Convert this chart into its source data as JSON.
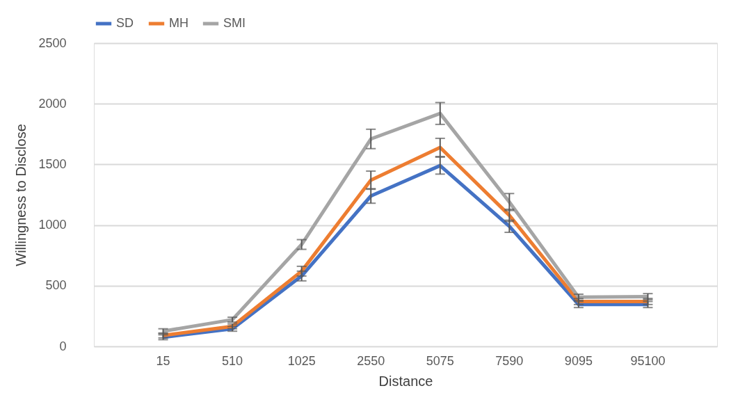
{
  "chart_data": {
    "type": "line",
    "xlabel": "Distance",
    "ylabel": "Willingness to Disclose",
    "categories": [
      "15",
      "510",
      "1025",
      "2550",
      "5075",
      "7590",
      "9095",
      "95100"
    ],
    "series": [
      {
        "name": "SD",
        "color": "#4472c4",
        "values": [
          75,
          145,
          580,
          1240,
          1490,
          990,
          345,
          345
        ],
        "errors": [
          20,
          20,
          40,
          60,
          70,
          50,
          25,
          25
        ]
      },
      {
        "name": "MH",
        "color": "#ed7d31",
        "values": [
          90,
          165,
          620,
          1370,
          1640,
          1080,
          370,
          370
        ],
        "errors": [
          20,
          20,
          40,
          75,
          75,
          50,
          25,
          25
        ]
      },
      {
        "name": "SMI",
        "color": "#a5a5a5",
        "values": [
          125,
          220,
          840,
          1710,
          1920,
          1190,
          405,
          410
        ],
        "errors": [
          20,
          20,
          40,
          80,
          90,
          70,
          25,
          25
        ]
      }
    ],
    "ylim": [
      0,
      2500
    ],
    "yticks": [
      0,
      500,
      1000,
      1500,
      2000,
      2500
    ],
    "grid": "y",
    "legend": "top",
    "marker": "none",
    "line_style": "solid"
  }
}
